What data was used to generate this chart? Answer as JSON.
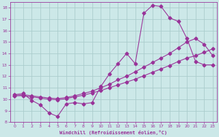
{
  "background_color": "#cce8e8",
  "grid_color": "#aacccc",
  "line_color": "#993399",
  "xlabel": "Windchill (Refroidissement éolien,°C)",
  "xlim": [
    -0.5,
    23.5
  ],
  "ylim": [
    8,
    18.5
  ],
  "xticks": [
    0,
    1,
    2,
    3,
    4,
    5,
    6,
    7,
    8,
    9,
    10,
    11,
    12,
    13,
    14,
    15,
    16,
    17,
    18,
    19,
    20,
    21,
    22,
    23
  ],
  "yticks": [
    8,
    9,
    10,
    11,
    12,
    13,
    14,
    15,
    16,
    17,
    18
  ],
  "line1_x": [
    0,
    1,
    2,
    3,
    4,
    5,
    6,
    7,
    8,
    9,
    10,
    11,
    12,
    13,
    14,
    15,
    16,
    17,
    18,
    19,
    20,
    21,
    22,
    23
  ],
  "line1_y": [
    10.4,
    10.5,
    9.9,
    9.5,
    8.8,
    8.5,
    9.6,
    9.7,
    9.6,
    9.7,
    11.1,
    12.2,
    13.1,
    14.0,
    13.1,
    17.5,
    18.2,
    18.1,
    17.1,
    16.8,
    15.3,
    13.3,
    13.0,
    13.0
  ],
  "line2_x": [
    0,
    1,
    2,
    3,
    4,
    5,
    6,
    7,
    8,
    9,
    10,
    11,
    12,
    13,
    14,
    15,
    16,
    17,
    18,
    19,
    20,
    21,
    22,
    23
  ],
  "line2_y": [
    10.3,
    10.4,
    10.3,
    10.2,
    10.1,
    10.05,
    10.15,
    10.3,
    10.5,
    10.7,
    11.0,
    11.3,
    11.7,
    12.0,
    12.4,
    12.8,
    13.2,
    13.6,
    14.0,
    14.5,
    15.0,
    15.3,
    14.8,
    13.8
  ],
  "line3_x": [
    0,
    1,
    2,
    3,
    4,
    5,
    6,
    7,
    8,
    9,
    10,
    11,
    12,
    13,
    14,
    15,
    16,
    17,
    18,
    19,
    20,
    21,
    22,
    23
  ],
  "line3_y": [
    10.3,
    10.3,
    10.2,
    10.1,
    10.0,
    9.95,
    10.05,
    10.2,
    10.35,
    10.55,
    10.75,
    11.0,
    11.25,
    11.5,
    11.75,
    12.05,
    12.35,
    12.65,
    12.95,
    13.3,
    13.6,
    13.8,
    14.1,
    14.4
  ],
  "marker": "D",
  "markersize": 2.5,
  "linewidth": 0.8
}
